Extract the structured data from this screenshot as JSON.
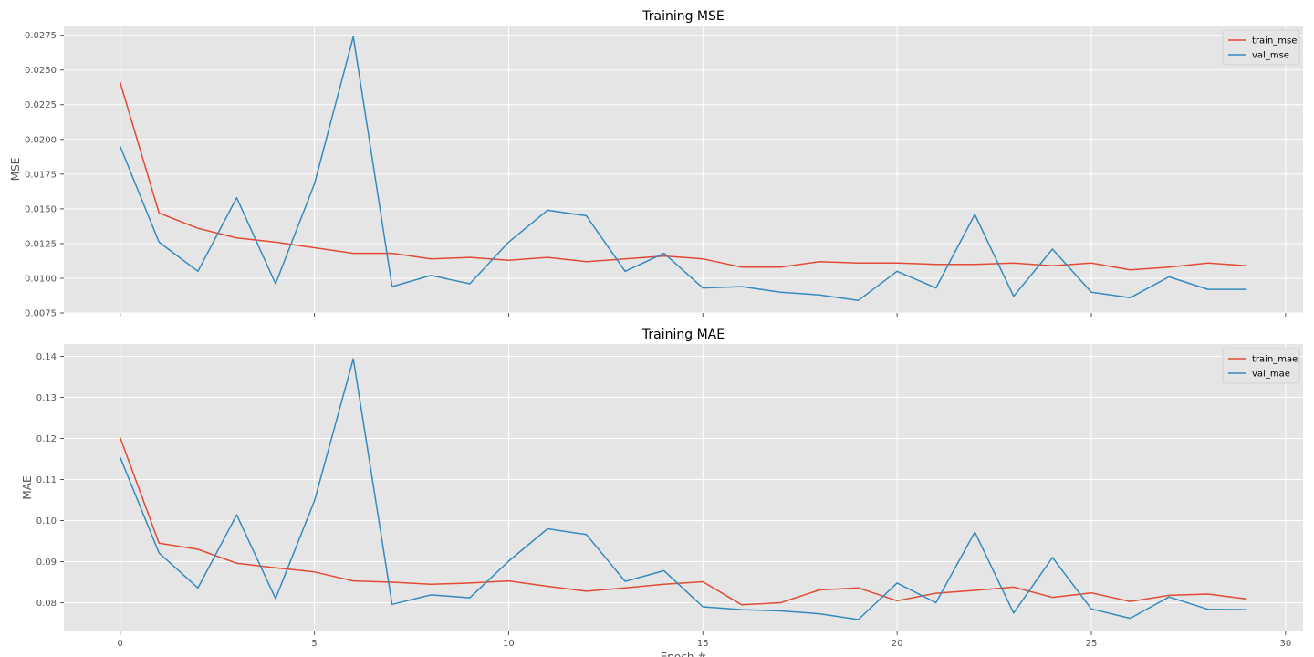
{
  "chart_data": [
    {
      "type": "line",
      "title": "Training MSE",
      "xlabel": "",
      "ylabel": "MSE",
      "xlim": [
        -1.45,
        30.45
      ],
      "ylim": [
        0.0075,
        0.0282
      ],
      "xticks": [
        0,
        5,
        10,
        15,
        20,
        25,
        30
      ],
      "xtick_labels": [
        "",
        "",
        "",
        "",
        "",
        "",
        ""
      ],
      "yticks": [
        0.0075,
        0.01,
        0.0125,
        0.015,
        0.0175,
        0.02,
        0.0225,
        0.025,
        0.0275
      ],
      "ytick_labels": [
        "0.0075",
        "0.0100",
        "0.0125",
        "0.0150",
        "0.0175",
        "0.0200",
        "0.0225",
        "0.0250",
        "0.0275"
      ],
      "grid": true,
      "legend": "top-right",
      "x": [
        0,
        1,
        2,
        3,
        4,
        5,
        6,
        7,
        8,
        9,
        10,
        11,
        12,
        13,
        14,
        15,
        16,
        17,
        18,
        19,
        20,
        21,
        22,
        23,
        24,
        25,
        26,
        27,
        28,
        29
      ],
      "series": [
        {
          "name": "train_mse",
          "color": "#E24A33",
          "values": [
            0.0241,
            0.0147,
            0.0136,
            0.0129,
            0.0126,
            0.0122,
            0.0118,
            0.0118,
            0.0114,
            0.0115,
            0.0113,
            0.0115,
            0.0112,
            0.0114,
            0.0116,
            0.0114,
            0.0108,
            0.0108,
            0.0112,
            0.0111,
            0.0111,
            0.011,
            0.011,
            0.0111,
            0.0109,
            0.0111,
            0.0106,
            0.0108,
            0.0111,
            0.0109
          ]
        },
        {
          "name": "val_mse",
          "color": "#348ABD",
          "values": [
            0.0195,
            0.0126,
            0.0105,
            0.0158,
            0.0096,
            0.0168,
            0.0274,
            0.0094,
            0.0102,
            0.0096,
            0.0126,
            0.0149,
            0.0145,
            0.0105,
            0.0118,
            0.0093,
            0.0094,
            0.009,
            0.0088,
            0.0084,
            0.0105,
            0.0093,
            0.0146,
            0.0087,
            0.0121,
            0.009,
            0.0086,
            0.0101,
            0.0092,
            0.0092
          ]
        }
      ]
    },
    {
      "type": "line",
      "title": "Training MAE",
      "xlabel": "Epoch #",
      "ylabel": "MAE",
      "xlim": [
        -1.45,
        30.45
      ],
      "ylim": [
        0.073,
        0.143
      ],
      "xticks": [
        0,
        5,
        10,
        15,
        20,
        25,
        30
      ],
      "xtick_labels": [
        "0",
        "5",
        "10",
        "15",
        "20",
        "25",
        "30"
      ],
      "yticks": [
        0.08,
        0.09,
        0.1,
        0.11,
        0.12,
        0.13,
        0.14
      ],
      "ytick_labels": [
        "0.08",
        "0.09",
        "0.10",
        "0.11",
        "0.12",
        "0.13",
        "0.14"
      ],
      "grid": true,
      "legend": "top-right",
      "x": [
        0,
        1,
        2,
        3,
        4,
        5,
        6,
        7,
        8,
        9,
        10,
        11,
        12,
        13,
        14,
        15,
        16,
        17,
        18,
        19,
        20,
        21,
        22,
        23,
        24,
        25,
        26,
        27,
        28,
        29
      ],
      "series": [
        {
          "name": "train_mae",
          "color": "#E24A33",
          "values": [
            0.1202,
            0.0945,
            0.093,
            0.0896,
            0.0885,
            0.0875,
            0.0853,
            0.085,
            0.0845,
            0.0848,
            0.0853,
            0.084,
            0.0828,
            0.0836,
            0.0845,
            0.0851,
            0.0795,
            0.08,
            0.0831,
            0.0836,
            0.0805,
            0.0823,
            0.083,
            0.0838,
            0.0813,
            0.0824,
            0.0803,
            0.0818,
            0.0821,
            0.0809
          ]
        },
        {
          "name": "val_mae",
          "color": "#348ABD",
          "values": [
            0.1154,
            0.0921,
            0.0836,
            0.1014,
            0.081,
            0.1048,
            0.1394,
            0.0796,
            0.0819,
            0.0812,
            0.0901,
            0.098,
            0.0966,
            0.0852,
            0.0878,
            0.079,
            0.0783,
            0.078,
            0.0773,
            0.0759,
            0.0848,
            0.08,
            0.0972,
            0.0775,
            0.091,
            0.0785,
            0.0762,
            0.0814,
            0.0784,
            0.0783
          ]
        }
      ]
    }
  ]
}
